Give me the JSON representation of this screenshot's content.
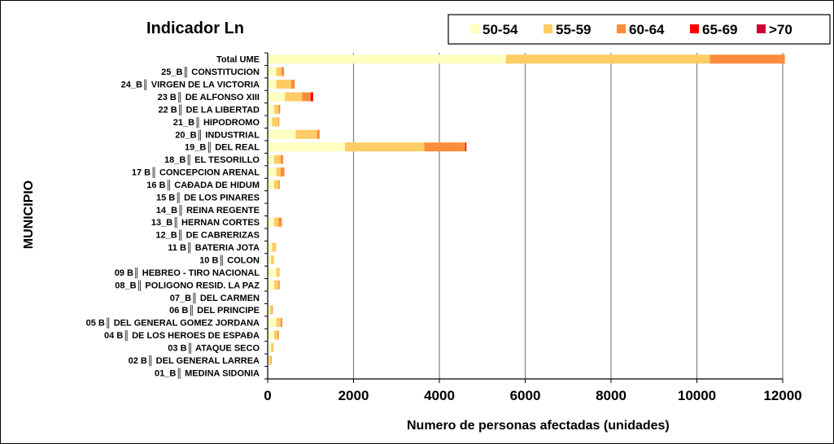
{
  "chart_data": {
    "type": "bar",
    "orientation": "horizontal",
    "stacked": true,
    "title": "Indicador Ln",
    "xlabel": "Numero de personas afectadas (unidades)",
    "ylabel": "MUNICIPIO",
    "xlim": [
      0,
      12000
    ],
    "xticks": [
      "0",
      "2000",
      "4000",
      "6000",
      "8000",
      "10000",
      "12000"
    ],
    "grid": "vertical",
    "legend_position": "top-right",
    "categories": [
      "Total UME",
      "25_B║ CONSTITUCION",
      "24_B║ VIRGEN DE LA VICTORIA",
      "23 B║ DE ALFONSO XIII",
      "22 B║ DE LA LIBERTAD",
      "21_B║ HIPODROMO",
      "20_B║ INDUSTRIAL",
      "19_B║ DEL REAL",
      "18_B║ EL TESORILLO",
      "17 B║ CONCEPCION ARENAL",
      "16 B║ CAÐADA DE HIDUM",
      "15 B║ DE LOS PINARES",
      "14_B║ REINA REGENTE",
      "13_B║ HERNAN CORTES",
      "12_B║ DE CABRERIZAS",
      "11 B║ BATERIA JOTA",
      "10 B║ COLON",
      "09 B║ HEBREO - TIRO NACIONAL",
      "08_B║ POLIGONO RESID. LA PAZ",
      "07_B║ DEL CARMEN",
      "06 B║ DEL PRINCIPE",
      "05 B║ DEL GENERAL GOMEZ JORDANA",
      "04 B║ DE LOS HEROES DE ESPAÐA",
      "03 B║ ATAQUE SECO",
      "02 B║ DEL GENERAL LARREA",
      "01_B║ MEDINA SIDONIA"
    ],
    "series": [
      {
        "name": "50-54",
        "color": "#FFFFC0",
        "values": [
          5550,
          200,
          200,
          400,
          150,
          100,
          650,
          1800,
          150,
          200,
          150,
          0,
          0,
          150,
          0,
          100,
          80,
          200,
          150,
          0,
          50,
          200,
          150,
          80,
          30,
          0
        ]
      },
      {
        "name": "55-59",
        "color": "#FFCC66",
        "values": [
          4750,
          120,
          350,
          400,
          100,
          150,
          500,
          1850,
          150,
          100,
          100,
          0,
          0,
          100,
          0,
          100,
          70,
          80,
          100,
          0,
          50,
          100,
          80,
          40,
          40,
          0
        ]
      },
      {
        "name": "60-64",
        "color": "#FF8C3C",
        "values": [
          1750,
          60,
          80,
          200,
          40,
          20,
          60,
          950,
          60,
          90,
          30,
          0,
          0,
          80,
          0,
          0,
          0,
          0,
          30,
          0,
          20,
          40,
          30,
          10,
          20,
          0
        ]
      },
      {
        "name": "65-69",
        "color": "#FF0000",
        "values": [
          0,
          0,
          0,
          60,
          0,
          0,
          0,
          30,
          0,
          0,
          0,
          0,
          0,
          0,
          0,
          0,
          0,
          0,
          0,
          0,
          0,
          0,
          0,
          0,
          0,
          0
        ]
      },
      {
        "name": ">70",
        "color": "#CC0033",
        "values": [
          0,
          0,
          0,
          0,
          0,
          0,
          0,
          0,
          0,
          0,
          0,
          0,
          0,
          0,
          0,
          0,
          0,
          0,
          0,
          0,
          0,
          0,
          0,
          0,
          0,
          0
        ]
      }
    ]
  }
}
